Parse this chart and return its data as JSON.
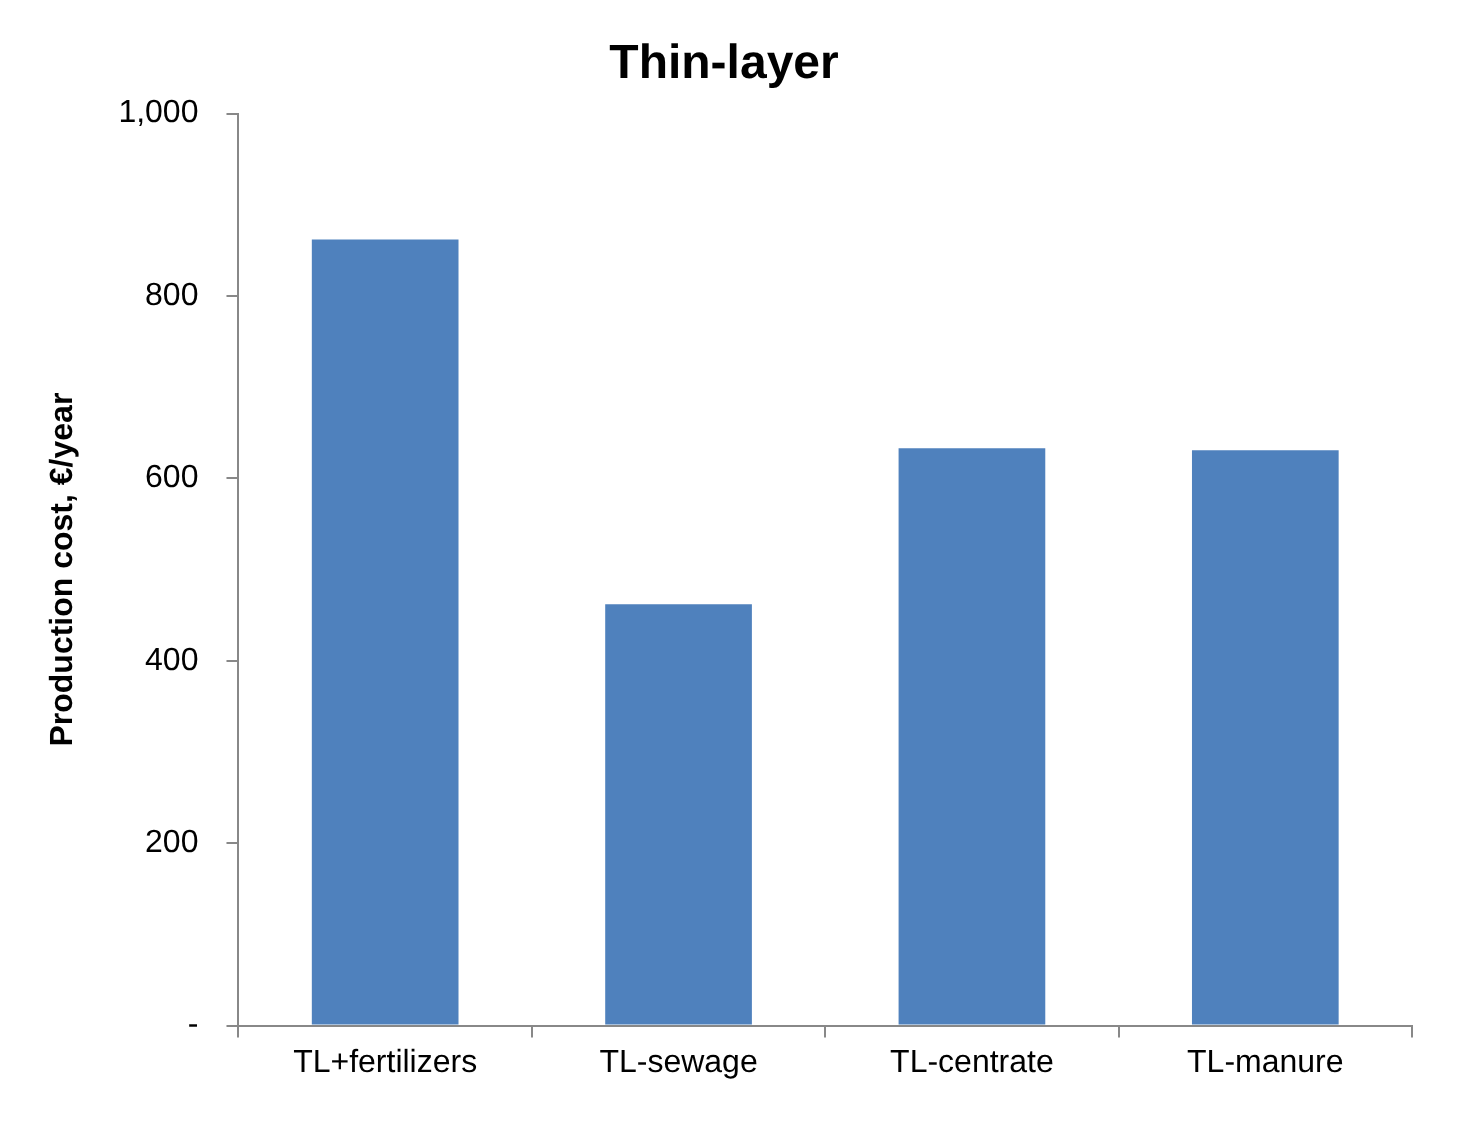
{
  "chart_data": {
    "type": "bar",
    "title": "Thin-layer",
    "ylabel": "Production cost, €/year",
    "categories": [
      "TL+fertilizers",
      "TL-sewage",
      "TL-centrate",
      "TL-manure"
    ],
    "values": [
      862,
      462,
      633,
      631
    ],
    "color": "#4f81bd",
    "ylim": [
      0,
      1000
    ],
    "yticks": [
      {
        "value": 0,
        "label": "-"
      },
      200,
      400,
      600,
      800,
      {
        "value": 1000,
        "label": "1,000"
      }
    ],
    "grid": false,
    "legend": false
  }
}
